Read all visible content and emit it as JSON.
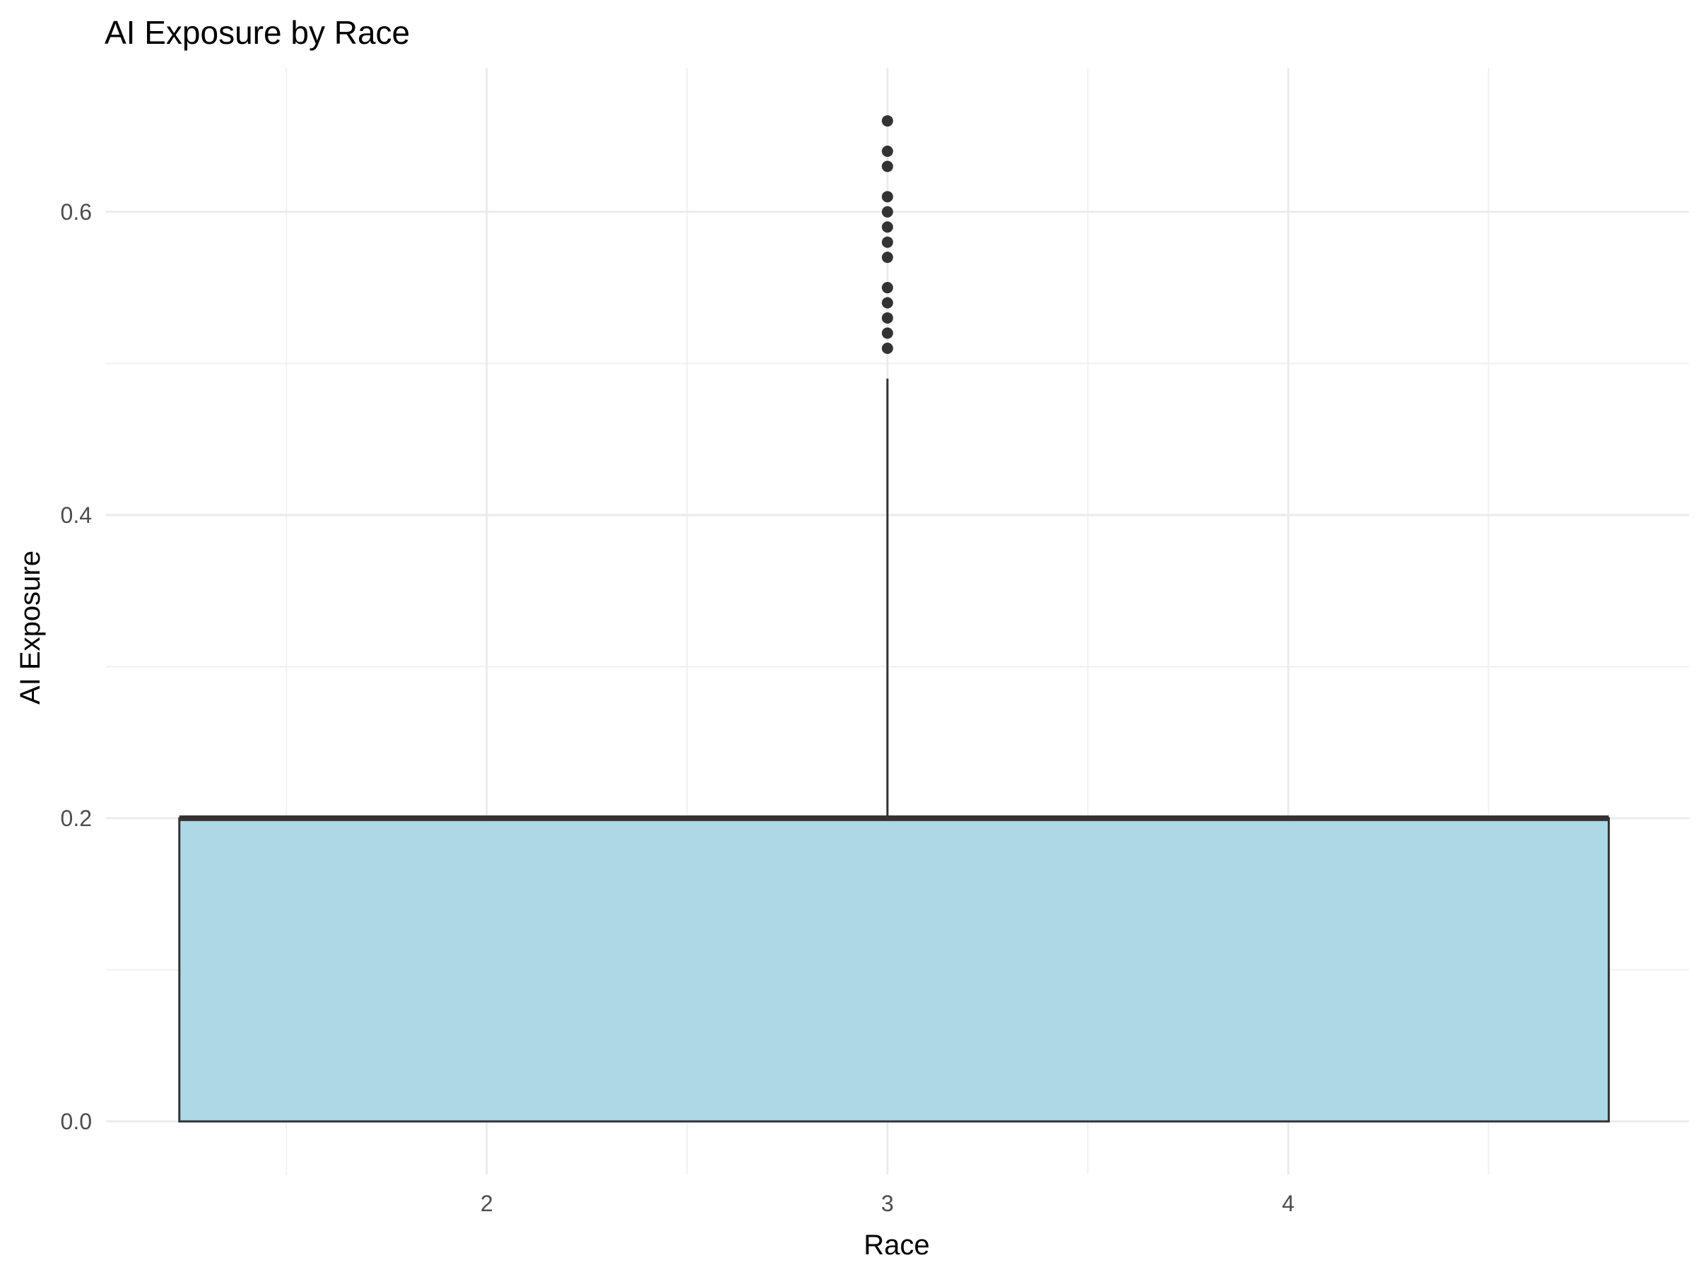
{
  "chart_data": {
    "type": "boxplot",
    "title": "AI Exposure by Race",
    "xlabel": "Race",
    "ylabel": "AI Exposure",
    "xlim": [
      1.05,
      5.0
    ],
    "ylim": [
      -0.035,
      0.695
    ],
    "x_ticks": [
      2,
      3,
      4
    ],
    "x_tick_labels": [
      "2",
      "3",
      "4"
    ],
    "y_ticks": [
      0.0,
      0.2,
      0.4,
      0.6
    ],
    "y_tick_labels": [
      "0.0",
      "0.2",
      "0.4",
      "0.6"
    ],
    "y_minor_ticks": [
      0.1,
      0.3,
      0.5
    ],
    "x_minor_ticks": [
      1.5,
      2.5,
      3.5,
      4.5
    ],
    "grid": true,
    "fill_color": "#ADD8E6",
    "line_color": "#333333",
    "box": {
      "x": 3,
      "x_span": [
        1.233,
        4.8
      ],
      "lower_quartile": 0.0,
      "median": 0.2,
      "upper_quartile": 0.2,
      "whisker_low": 0.0,
      "whisker_high": 0.49,
      "outliers": [
        0.51,
        0.52,
        0.53,
        0.54,
        0.55,
        0.57,
        0.58,
        0.59,
        0.6,
        0.61,
        0.63,
        0.64,
        0.66
      ]
    }
  }
}
